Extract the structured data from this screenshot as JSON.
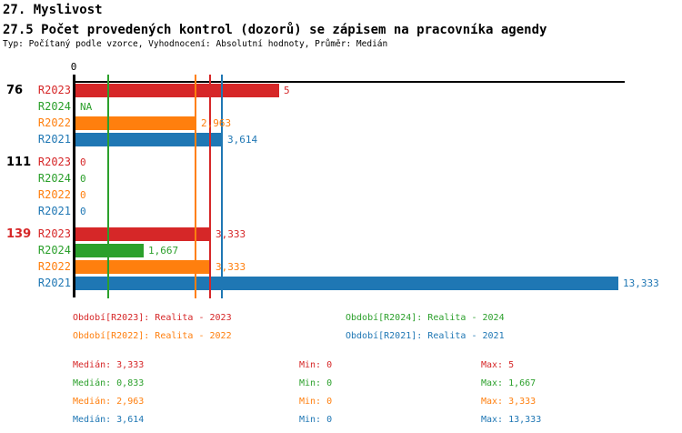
{
  "header": {
    "title": "27. Myslivost",
    "subtitle": "27.5 Počet provedených kontrol (dozorů) se zápisem na pracovníka agendy",
    "meta": "Typ: Počítaný podle vzorce, Vyhodnocení: Absolutní hodnoty, Průměr: Medián"
  },
  "chart_data": {
    "type": "bar",
    "orientation": "horizontal",
    "x_axis": {
      "tick_label": "0",
      "min": 0,
      "max": 13.55,
      "grid": false
    },
    "value_format": "comma-decimal",
    "series_order": [
      "R2023",
      "R2024",
      "R2022",
      "R2021"
    ],
    "series_colors": {
      "R2023": "#d62728",
      "R2024": "#2ca02c",
      "R2022": "#ff7f0e",
      "R2021": "#1f77b4"
    },
    "groups": [
      {
        "label": "76",
        "label_color": "#000000",
        "bars": [
          {
            "series": "R2023",
            "value": 5,
            "display": "5"
          },
          {
            "series": "R2024",
            "value": null,
            "display": "NA"
          },
          {
            "series": "R2022",
            "value": 2.963,
            "display": "2,963"
          },
          {
            "series": "R2021",
            "value": 3.614,
            "display": "3,614"
          }
        ]
      },
      {
        "label": "111",
        "label_color": "#000000",
        "bars": [
          {
            "series": "R2023",
            "value": 0,
            "display": "0"
          },
          {
            "series": "R2024",
            "value": 0,
            "display": "0"
          },
          {
            "series": "R2022",
            "value": 0,
            "display": "0"
          },
          {
            "series": "R2021",
            "value": 0,
            "display": "0"
          }
        ]
      },
      {
        "label": "139",
        "label_color": "#d62728",
        "bars": [
          {
            "series": "R2023",
            "value": 3.333,
            "display": "3,333"
          },
          {
            "series": "R2024",
            "value": 1.667,
            "display": "1,667"
          },
          {
            "series": "R2022",
            "value": 3.333,
            "display": "3,333"
          },
          {
            "series": "R2021",
            "value": 13.333,
            "display": "13,333"
          }
        ]
      }
    ],
    "median_lines": [
      {
        "series": "R2023",
        "value": 3.333
      },
      {
        "series": "R2024",
        "value": 0.833
      },
      {
        "series": "R2022",
        "value": 2.963
      },
      {
        "series": "R2021",
        "value": 3.614
      }
    ]
  },
  "legend": {
    "items": [
      {
        "series": "R2023",
        "text": "Období[R2023]: Realita - 2023"
      },
      {
        "series": "R2024",
        "text": "Období[R2024]: Realita - 2024"
      },
      {
        "series": "R2022",
        "text": "Období[R2022]: Realita - 2022"
      },
      {
        "series": "R2021",
        "text": "Období[R2021]: Realita - 2021"
      }
    ]
  },
  "stats": {
    "rows": [
      {
        "series": "R2023",
        "median": "Medián: 3,333",
        "min": "Min: 0",
        "max": "Max: 5"
      },
      {
        "series": "R2024",
        "median": "Medián: 0,833",
        "min": "Min: 0",
        "max": "Max: 1,667"
      },
      {
        "series": "R2022",
        "median": "Medián: 2,963",
        "min": "Min: 0",
        "max": "Max: 3,333"
      },
      {
        "series": "R2021",
        "median": "Medián: 3,614",
        "min": "Min: 0",
        "max": "Max: 13,333"
      }
    ]
  }
}
